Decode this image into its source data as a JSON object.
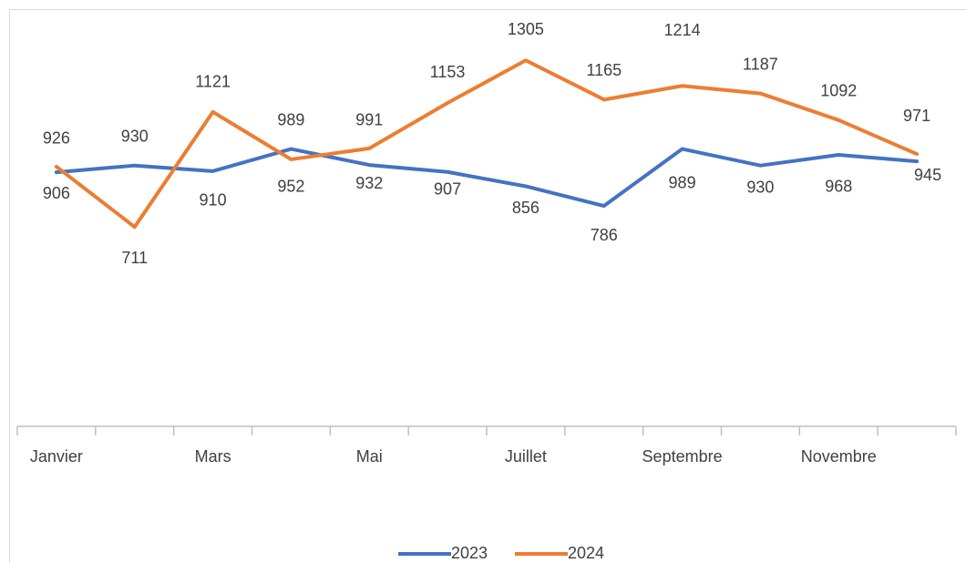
{
  "chart_data": {
    "type": "line",
    "categories": [
      "Janvier",
      null,
      "Mars",
      null,
      "Mai",
      null,
      "Juillet",
      null,
      "Septembre",
      null,
      "Novembre",
      null
    ],
    "series": [
      {
        "name": "2023",
        "color": "#4472c4",
        "values": [
          906,
          930,
          910,
          989,
          932,
          907,
          856,
          786,
          989,
          930,
          968,
          945
        ]
      },
      {
        "name": "2024",
        "color": "#ed7d31",
        "values": [
          926,
          711,
          1121,
          952,
          991,
          1153,
          1305,
          1165,
          1214,
          1187,
          1092,
          971
        ]
      }
    ],
    "ylim": [
      0,
      1400
    ],
    "grid": false,
    "legend": "bottom"
  }
}
